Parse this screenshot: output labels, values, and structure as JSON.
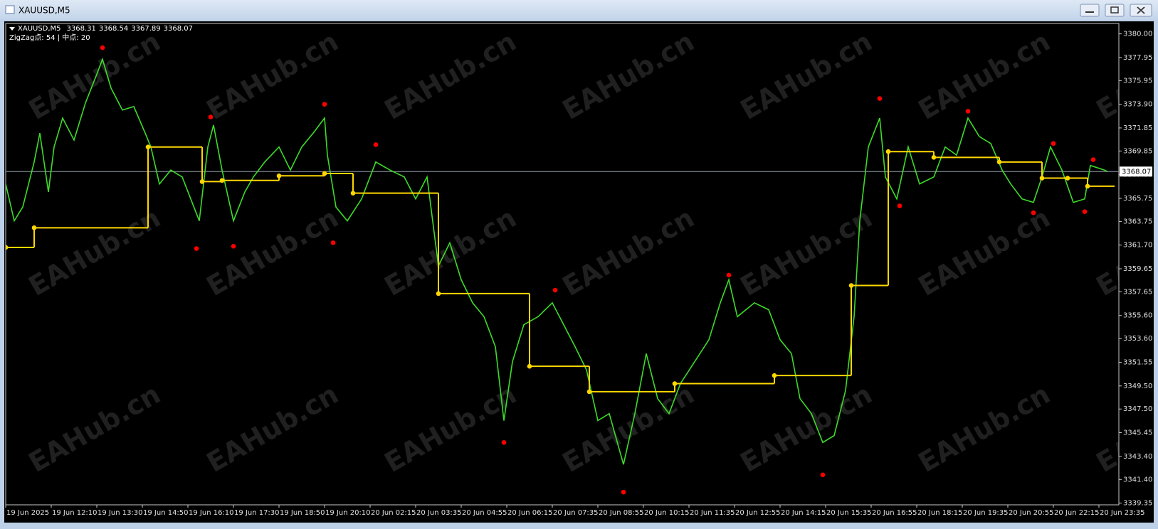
{
  "window": {
    "title": "XAUUSD,M5"
  },
  "header": {
    "symbol": "XAUUSD,M5",
    "ohlc": [
      3368.31,
      3368.54,
      3367.89,
      3368.07
    ],
    "indicator": "ZigZag点: 54 | 中点: 20"
  },
  "watermark": "EAHub.cn",
  "chart_data": {
    "type": "line",
    "xlim": [
      0,
      391
    ],
    "ylim": [
      3339.2,
      3380.9
    ],
    "current_price": 3368.07,
    "yticks": [
      {
        "value": 3380,
        "label": "3380.00"
      },
      3377.95,
      3375.95,
      {
        "value": 3373.9,
        "label": "3373.90"
      },
      3371.85,
      3369.85,
      {
        "value": 3367.8,
        "label": "3367.80"
      },
      3365.75,
      3363.75,
      {
        "value": 3361.7,
        "label": "3361.70"
      },
      3359.65,
      3357.65,
      {
        "value": 3355.6,
        "label": "3355.60"
      },
      {
        "value": 3353.6,
        "label": "3353.60"
      },
      3351.55,
      {
        "value": 3349.5,
        "label": "3349.50"
      },
      {
        "value": 3347.5,
        "label": "3347.50"
      },
      3345.45,
      {
        "value": 3343.4,
        "label": "3343.40"
      },
      {
        "value": 3341.4,
        "label": "3341.40"
      },
      3339.35
    ],
    "xticks": [
      {
        "value": 0,
        "label": "19 Jun 2025"
      },
      {
        "value": 16,
        "label": "19 Jun 12:10"
      },
      {
        "value": 32,
        "label": "19 Jun 13:30"
      },
      {
        "value": 48,
        "label": "19 Jun 14:50"
      },
      {
        "value": 64,
        "label": "19 Jun 16:10"
      },
      {
        "value": 80,
        "label": "19 Jun 17:30"
      },
      {
        "value": 96,
        "label": "19 Jun 18:50"
      },
      {
        "value": 112,
        "label": "19 Jun 20:10"
      },
      {
        "value": 128,
        "label": "20 Jun 02:15"
      },
      {
        "value": 144,
        "label": "20 Jun 03:35"
      },
      {
        "value": 160,
        "label": "20 Jun 04:55"
      },
      {
        "value": 176,
        "label": "20 Jun 06:15"
      },
      {
        "value": 192,
        "label": "20 Jun 07:35"
      },
      {
        "value": 208,
        "label": "20 Jun 08:55"
      },
      {
        "value": 224,
        "label": "20 Jun 10:15"
      },
      {
        "value": 240,
        "label": "20 Jun 11:35"
      },
      {
        "value": 256,
        "label": "20 Jun 12:55"
      },
      {
        "value": 272,
        "label": "20 Jun 14:15"
      },
      {
        "value": 288,
        "label": "20 Jun 15:35"
      },
      {
        "value": 304,
        "label": "20 Jun 16:55"
      },
      {
        "value": 320,
        "label": "20 Jun 18:15"
      },
      {
        "value": 336,
        "label": "20 Jun 19:35"
      },
      {
        "value": 352,
        "label": "20 Jun 20:55"
      },
      {
        "value": 368,
        "label": "20 Jun 22:15"
      },
      {
        "value": 384,
        "label": "20 Jun 23:35"
      }
    ],
    "series": [
      {
        "color": "#3cdc28",
        "style": "line",
        "x": [
          0,
          3,
          6,
          10,
          12,
          15,
          17,
          20,
          24,
          28,
          32,
          34,
          37,
          41,
          45,
          49,
          51,
          54,
          58,
          62,
          65,
          68,
          71,
          73,
          76,
          80,
          84,
          87,
          91,
          96,
          100,
          104,
          108,
          112,
          113,
          116,
          120,
          125,
          130,
          135,
          140,
          144,
          148,
          152,
          156,
          160,
          164,
          168,
          172,
          175,
          178,
          182,
          187,
          192,
          196,
          200,
          204,
          208,
          212,
          217,
          221,
          225,
          229,
          233,
          237,
          242,
          247,
          251,
          254,
          257,
          263,
          268,
          272,
          276,
          279,
          283,
          287,
          291,
          295,
          298,
          300,
          303,
          307,
          309,
          313,
          317,
          321,
          326,
          330,
          334,
          338,
          342,
          346,
          350,
          353,
          357,
          361,
          364,
          367,
          371,
          375,
          379,
          381,
          386,
          387
        ],
        "values": [
          3367.0,
          3363.8,
          3365.0,
          3368.9,
          3371.4,
          3366.3,
          3370.2,
          3372.7,
          3370.8,
          3374.0,
          3376.5,
          3377.8,
          3375.3,
          3373.4,
          3373.7,
          3371.4,
          3370.2,
          3367.0,
          3368.2,
          3367.6,
          3365.7,
          3363.8,
          3370.2,
          3372.1,
          3368.2,
          3363.8,
          3366.3,
          3367.6,
          3368.9,
          3370.2,
          3368.2,
          3370.2,
          3371.4,
          3372.7,
          3369.5,
          3365.0,
          3363.8,
          3365.7,
          3368.9,
          3368.2,
          3367.6,
          3365.7,
          3367.6,
          3359.9,
          3361.9,
          3358.7,
          3356.7,
          3355.5,
          3352.9,
          3346.5,
          3351.6,
          3354.8,
          3355.5,
          3356.7,
          3354.8,
          3352.9,
          3350.9,
          3346.5,
          3347.1,
          3342.7,
          3347.1,
          3352.3,
          3348.4,
          3347.1,
          3349.7,
          3351.6,
          3353.5,
          3356.7,
          3358.7,
          3355.5,
          3356.7,
          3356.1,
          3353.5,
          3352.3,
          3348.4,
          3347.1,
          3344.6,
          3345.2,
          3349.1,
          3355.5,
          3363.8,
          3370.2,
          3372.7,
          3367.6,
          3365.7,
          3370.2,
          3367.0,
          3367.6,
          3370.2,
          3369.5,
          3372.7,
          3371.1,
          3370.5,
          3368.2,
          3367.0,
          3365.7,
          3365.4,
          3367.6,
          3370.2,
          3368.2,
          3365.4,
          3365.7,
          3368.6,
          3368.2,
          3368.07
        ]
      },
      {
        "color": "#ff0000",
        "style": "markers",
        "x": [
          34,
          67,
          72,
          80,
          112,
          115,
          130,
          175,
          193,
          217,
          254,
          287,
          307,
          314,
          338,
          361,
          368,
          379,
          382
        ],
        "values": [
          3378.8,
          3361.4,
          3372.8,
          3361.6,
          3373.9,
          3361.9,
          3370.4,
          3344.6,
          3357.8,
          3340.3,
          3359.1,
          3341.8,
          3374.4,
          3365.1,
          3373.3,
          3364.5,
          3370.5,
          3364.6,
          3369.1
        ]
      },
      {
        "color": "#ffd700",
        "style": "step",
        "x": [
          0,
          10,
          50,
          69,
          76,
          96,
          112,
          122,
          152,
          184,
          205,
          235,
          270,
          297,
          310,
          326,
          349,
          364,
          373,
          380
        ],
        "values": [
          3361.5,
          3363.2,
          3370.2,
          3367.2,
          3367.3,
          3367.7,
          3367.9,
          3366.2,
          3357.5,
          3351.2,
          3349.0,
          3349.7,
          3350.4,
          3358.2,
          3369.8,
          3369.3,
          3368.9,
          3367.5,
          3367.5,
          3366.8
        ]
      }
    ]
  }
}
